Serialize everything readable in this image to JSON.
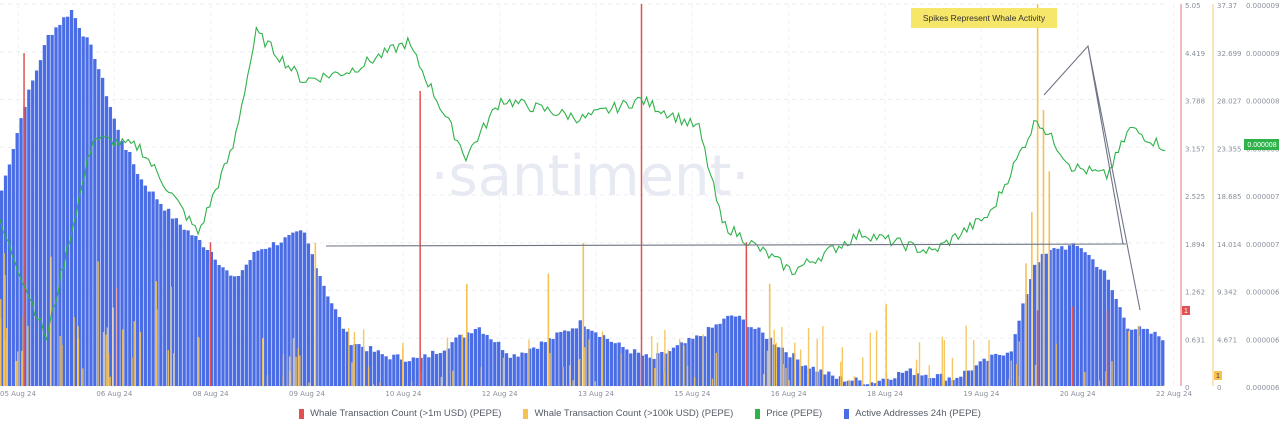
{
  "chart_data": {
    "type": "bar",
    "watermark": "·santiment·",
    "annotation": "Spikes Represent Whale Activity",
    "x_ticks": [
      "05 Aug 24",
      "06 Aug 24",
      "08 Aug 24",
      "09 Aug 24",
      "10 Aug 24",
      "12 Aug 24",
      "13 Aug 24",
      "15 Aug 24",
      "16 Aug 24",
      "18 Aug 24",
      "19 Aug 24",
      "20 Aug 24",
      "22 Aug 24"
    ],
    "axes": {
      "whale_1m": {
        "ticks": [
          "5.05",
          "4.419",
          "3.788",
          "3.157",
          "2.525",
          "1.894",
          "1.262",
          "0.631",
          "0"
        ],
        "ylim": [
          0,
          5.05
        ]
      },
      "whale_100k": {
        "ticks": [
          "37.37",
          "32.699",
          "28.027",
          "23.355",
          "18.685",
          "14.014",
          "9.342",
          "4.671",
          "0"
        ],
        "ylim": [
          0,
          37.37
        ]
      },
      "price": {
        "ticks": [
          "0.000009",
          "0.000009",
          "0.000008",
          "0.000008",
          "0.000007",
          "0.000007",
          "0.000006",
          "0.000006",
          "0.000006"
        ],
        "current_label": "0.000008"
      },
      "current_badges": {
        "whale_1m": "1",
        "whale_100k": "1"
      }
    },
    "series": [
      {
        "name": "Whale Transaction Count (>1m USD) (PEPE)",
        "color": "#e05252",
        "spikes": [
          [
            0.02,
            4.4
          ],
          [
            0.1,
            1.3
          ],
          [
            0.18,
            1.9
          ],
          [
            0.36,
            3.9
          ],
          [
            0.55,
            5.05
          ],
          [
            0.64,
            1.9
          ],
          [
            0.89,
            1.0
          ],
          [
            0.92,
            1.05
          ],
          [
            0.95,
            1.0
          ]
        ]
      },
      {
        "name": "Whale Transaction Count (>100k USD) (PEPE)",
        "color": "#f5c253",
        "spikes": [
          [
            0.89,
            37.37
          ],
          [
            0.895,
            27.0
          ],
          [
            0.9,
            21.0
          ],
          [
            0.885,
            17.0
          ],
          [
            0.88,
            12.0
          ],
          [
            0.76,
            8.0
          ],
          [
            0.64,
            13.0
          ],
          [
            0.66,
            10.0
          ],
          [
            0.47,
            11.0
          ],
          [
            0.5,
            14.0
          ],
          [
            0.27,
            14.0
          ],
          [
            0.4,
            10.0
          ]
        ]
      },
      {
        "name": "Price (PEPE)",
        "color": "#2fb24a",
        "points": [
          [
            0,
            7.2e-06
          ],
          [
            0.04,
            6e-06
          ],
          [
            0.08,
            8.1e-06
          ],
          [
            0.12,
            8e-06
          ],
          [
            0.17,
            7.1e-06
          ],
          [
            0.2,
            8e-06
          ],
          [
            0.22,
            9.2e-06
          ],
          [
            0.26,
            8.7e-06
          ],
          [
            0.3,
            8.8e-06
          ],
          [
            0.35,
            9.1e-06
          ],
          [
            0.4,
            7.9e-06
          ],
          [
            0.43,
            8.5e-06
          ],
          [
            0.5,
            8.3e-06
          ],
          [
            0.55,
            8.5e-06
          ],
          [
            0.6,
            8.2e-06
          ],
          [
            0.62,
            7.2e-06
          ],
          [
            0.68,
            6.7e-06
          ],
          [
            0.74,
            7.1e-06
          ],
          [
            0.8,
            6.9e-06
          ],
          [
            0.85,
            7.3e-06
          ],
          [
            0.89,
            8.3e-06
          ],
          [
            0.92,
            7.8e-06
          ],
          [
            0.95,
            7.7e-06
          ],
          [
            0.97,
            8.2e-06
          ],
          [
            1,
            8e-06
          ]
        ]
      },
      {
        "name": "Active Addresses 24h (PEPE)",
        "color": "#4a6de5",
        "points": [
          [
            0,
            0.52
          ],
          [
            0.02,
            0.75
          ],
          [
            0.04,
            0.93
          ],
          [
            0.06,
            1.0
          ],
          [
            0.08,
            0.88
          ],
          [
            0.1,
            0.68
          ],
          [
            0.12,
            0.55
          ],
          [
            0.15,
            0.44
          ],
          [
            0.18,
            0.36
          ],
          [
            0.2,
            0.28
          ],
          [
            0.22,
            0.36
          ],
          [
            0.26,
            0.41
          ],
          [
            0.28,
            0.25
          ],
          [
            0.3,
            0.12
          ],
          [
            0.33,
            0.08
          ],
          [
            0.36,
            0.07
          ],
          [
            0.38,
            0.1
          ],
          [
            0.41,
            0.16
          ],
          [
            0.44,
            0.08
          ],
          [
            0.47,
            0.12
          ],
          [
            0.5,
            0.17
          ],
          [
            0.53,
            0.11
          ],
          [
            0.56,
            0.07
          ],
          [
            0.6,
            0.13
          ],
          [
            0.63,
            0.19
          ],
          [
            0.66,
            0.13
          ],
          [
            0.69,
            0.06
          ],
          [
            0.72,
            0.02
          ],
          [
            0.75,
            0.01
          ],
          [
            0.78,
            0.04
          ],
          [
            0.82,
            0.02
          ],
          [
            0.85,
            0.07
          ],
          [
            0.87,
            0.1
          ],
          [
            0.89,
            0.33
          ],
          [
            0.91,
            0.37
          ],
          [
            0.93,
            0.37
          ],
          [
            0.95,
            0.3
          ],
          [
            0.97,
            0.16
          ],
          [
            0.99,
            0.14
          ],
          [
            1,
            0.13
          ]
        ]
      }
    ]
  }
}
